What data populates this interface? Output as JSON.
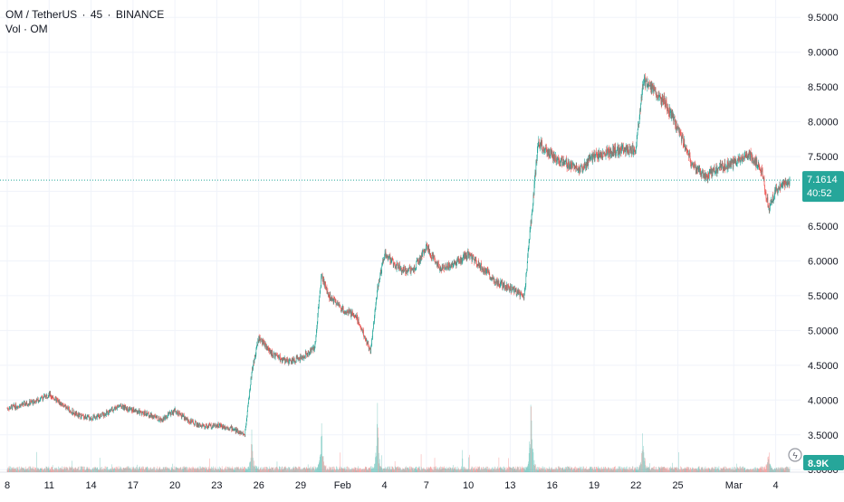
{
  "header": {
    "symbol": "OM / TetherUS",
    "interval": "45",
    "exchange": "BINANCE",
    "volume_label": "Vol · OM"
  },
  "price_tag": {
    "price": "7.1614",
    "countdown": "40:52"
  },
  "volume_tag": {
    "value": "8.9K"
  },
  "colors": {
    "up": "#26a69a",
    "down": "#ef5350",
    "grid": "#f0f3fa",
    "axis_text": "#131722",
    "price_line": "#26a69a"
  },
  "chart_data": {
    "type": "candlestick",
    "interval": "45",
    "price_scale": {
      "min": 2.6,
      "max": 9.75,
      "ticks": [
        "9.5000",
        "9.0000",
        "8.5000",
        "8.0000",
        "7.5000",
        "7.0000",
        "6.5000",
        "6.0000",
        "5.5000",
        "5.0000",
        "4.5000",
        "4.0000",
        "3.5000",
        "3.0000"
      ]
    },
    "x_ticks": [
      "8",
      "11",
      "14",
      "17",
      "20",
      "23",
      "26",
      "29",
      "Feb",
      "4",
      "7",
      "10",
      "13",
      "16",
      "19",
      "22",
      "25",
      "Mar",
      "4"
    ],
    "x_tick_dates": [
      "2025-01-08",
      "2025-01-11",
      "2025-01-14",
      "2025-01-17",
      "2025-01-20",
      "2025-01-23",
      "2025-01-26",
      "2025-01-29",
      "2025-02-01",
      "2025-02-04",
      "2025-02-07",
      "2025-02-10",
      "2025-02-13",
      "2025-02-16",
      "2025-02-19",
      "2025-02-22",
      "2025-02-25",
      "2025-03-01",
      "2025-03-04"
    ],
    "date_range": [
      "2025-01-08",
      "2025-03-05"
    ],
    "last_price": 7.1614,
    "price_path": [
      [
        "2025-01-08",
        3.88
      ],
      [
        "2025-01-10",
        3.98
      ],
      [
        "2025-01-11",
        4.08
      ],
      [
        "2025-01-12",
        3.92
      ],
      [
        "2025-01-13",
        3.78
      ],
      [
        "2025-01-14",
        3.74
      ],
      [
        "2025-01-15",
        3.8
      ],
      [
        "2025-01-16",
        3.92
      ],
      [
        "2025-01-17",
        3.85
      ],
      [
        "2025-01-18",
        3.8
      ],
      [
        "2025-01-19",
        3.72
      ],
      [
        "2025-01-20",
        3.85
      ],
      [
        "2025-01-21",
        3.7
      ],
      [
        "2025-01-22",
        3.62
      ],
      [
        "2025-01-23",
        3.64
      ],
      [
        "2025-01-24",
        3.6
      ],
      [
        "2025-01-25",
        3.5
      ],
      [
        "2025-01-25T12",
        4.4
      ],
      [
        "2025-01-26",
        4.9
      ],
      [
        "2025-01-27",
        4.65
      ],
      [
        "2025-01-28",
        4.55
      ],
      [
        "2025-01-29",
        4.6
      ],
      [
        "2025-01-30",
        4.75
      ],
      [
        "2025-01-30T12",
        5.8
      ],
      [
        "2025-01-31",
        5.5
      ],
      [
        "2025-02-01",
        5.3
      ],
      [
        "2025-02-02",
        5.2
      ],
      [
        "2025-02-03",
        4.7
      ],
      [
        "2025-02-03T12",
        5.6
      ],
      [
        "2025-02-04",
        6.1
      ],
      [
        "2025-02-05",
        5.9
      ],
      [
        "2025-02-06",
        5.85
      ],
      [
        "2025-02-07",
        6.2
      ],
      [
        "2025-02-08",
        5.9
      ],
      [
        "2025-02-09",
        5.95
      ],
      [
        "2025-02-10",
        6.1
      ],
      [
        "2025-02-11",
        5.9
      ],
      [
        "2025-02-12",
        5.7
      ],
      [
        "2025-02-13",
        5.6
      ],
      [
        "2025-02-14",
        5.5
      ],
      [
        "2025-02-14T12",
        6.6
      ],
      [
        "2025-02-15",
        7.7
      ],
      [
        "2025-02-16",
        7.5
      ],
      [
        "2025-02-17",
        7.4
      ],
      [
        "2025-02-18",
        7.3
      ],
      [
        "2025-02-19",
        7.5
      ],
      [
        "2025-02-20",
        7.55
      ],
      [
        "2025-02-21",
        7.6
      ],
      [
        "2025-02-22",
        7.6
      ],
      [
        "2025-02-22T12",
        8.6
      ],
      [
        "2025-02-23",
        8.5
      ],
      [
        "2025-02-24",
        8.3
      ],
      [
        "2025-02-25",
        7.9
      ],
      [
        "2025-02-26",
        7.4
      ],
      [
        "2025-02-27",
        7.2
      ],
      [
        "2025-02-28",
        7.35
      ],
      [
        "2025-03-01",
        7.4
      ],
      [
        "2025-03-02",
        7.55
      ],
      [
        "2025-03-03",
        7.3
      ],
      [
        "2025-03-03T12",
        6.75
      ],
      [
        "2025-03-04",
        7.0
      ],
      [
        "2025-03-05",
        7.16
      ]
    ],
    "volume_spikes": [
      [
        "2025-01-25T12",
        0.55
      ],
      [
        "2025-01-30T12",
        1.0
      ],
      [
        "2025-02-03T12",
        0.95
      ],
      [
        "2025-02-14T12",
        1.6
      ],
      [
        "2025-02-22T12",
        0.75
      ],
      [
        "2025-03-03T12",
        0.35
      ]
    ]
  }
}
